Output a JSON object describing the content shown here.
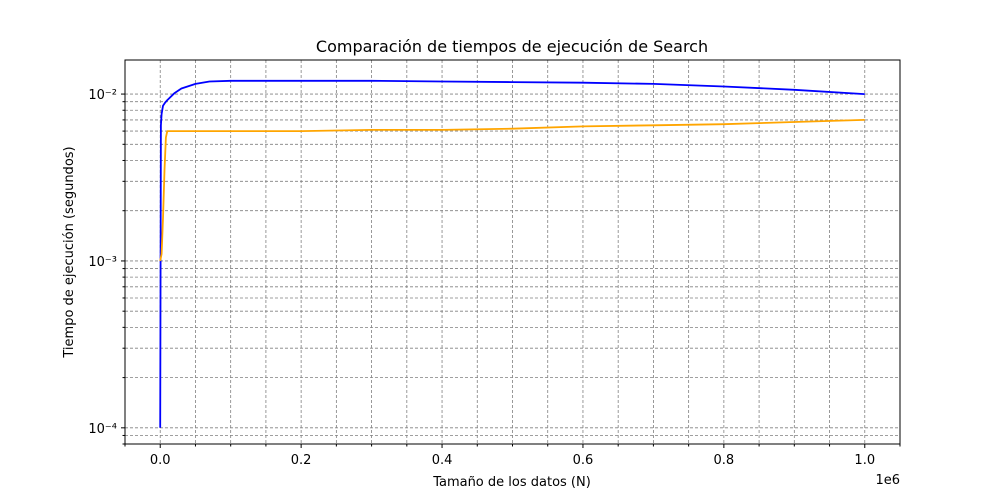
{
  "chart_data": {
    "type": "line",
    "title": "Comparación de tiempos de ejecución de Search",
    "xlabel": "Tamaño de los datos (N)",
    "ylabel": "Tiempo de ejecución (segundos)",
    "x_offset_label": "1e6",
    "x_scale": "linear",
    "y_scale": "log",
    "xlim": [
      -0.05,
      1.05
    ],
    "ylim": [
      8e-05,
      0.016
    ],
    "x_ticks": [
      0.0,
      0.2,
      0.4,
      0.6,
      0.8,
      1.0
    ],
    "x_tick_labels": [
      "0.0",
      "0.2",
      "0.4",
      "0.6",
      "0.8",
      "1.0"
    ],
    "y_ticks": [
      0.0001,
      0.001,
      0.01
    ],
    "y_tick_labels": [
      "10⁻⁴",
      "10⁻³",
      "10⁻²"
    ],
    "grid": true,
    "series": [
      {
        "color": "#0000ff",
        "x": [
          0.0,
          0.001,
          0.002,
          0.004,
          0.007,
          0.01,
          0.02,
          0.03,
          0.05,
          0.07,
          0.1,
          0.2,
          0.3,
          0.4,
          0.5,
          0.6,
          0.7,
          0.8,
          0.9,
          1.0
        ],
        "y": [
          0.0001,
          0.0065,
          0.0076,
          0.0085,
          0.0089,
          0.0092,
          0.0101,
          0.0108,
          0.0115,
          0.0119,
          0.012,
          0.012,
          0.012,
          0.0119,
          0.0118,
          0.0117,
          0.0115,
          0.0111,
          0.0106,
          0.01
        ]
      },
      {
        "color": "#ffa500",
        "x": [
          0.0,
          0.002,
          0.004,
          0.006,
          0.008,
          0.01,
          0.02,
          0.1,
          0.2,
          0.3,
          0.4,
          0.5,
          0.6,
          0.7,
          0.8,
          0.9,
          1.0
        ],
        "y": [
          0.001,
          0.0011,
          0.0018,
          0.0035,
          0.0055,
          0.006,
          0.006,
          0.006,
          0.006,
          0.0061,
          0.0061,
          0.0062,
          0.0064,
          0.0065,
          0.0066,
          0.0068,
          0.007
        ]
      }
    ]
  }
}
